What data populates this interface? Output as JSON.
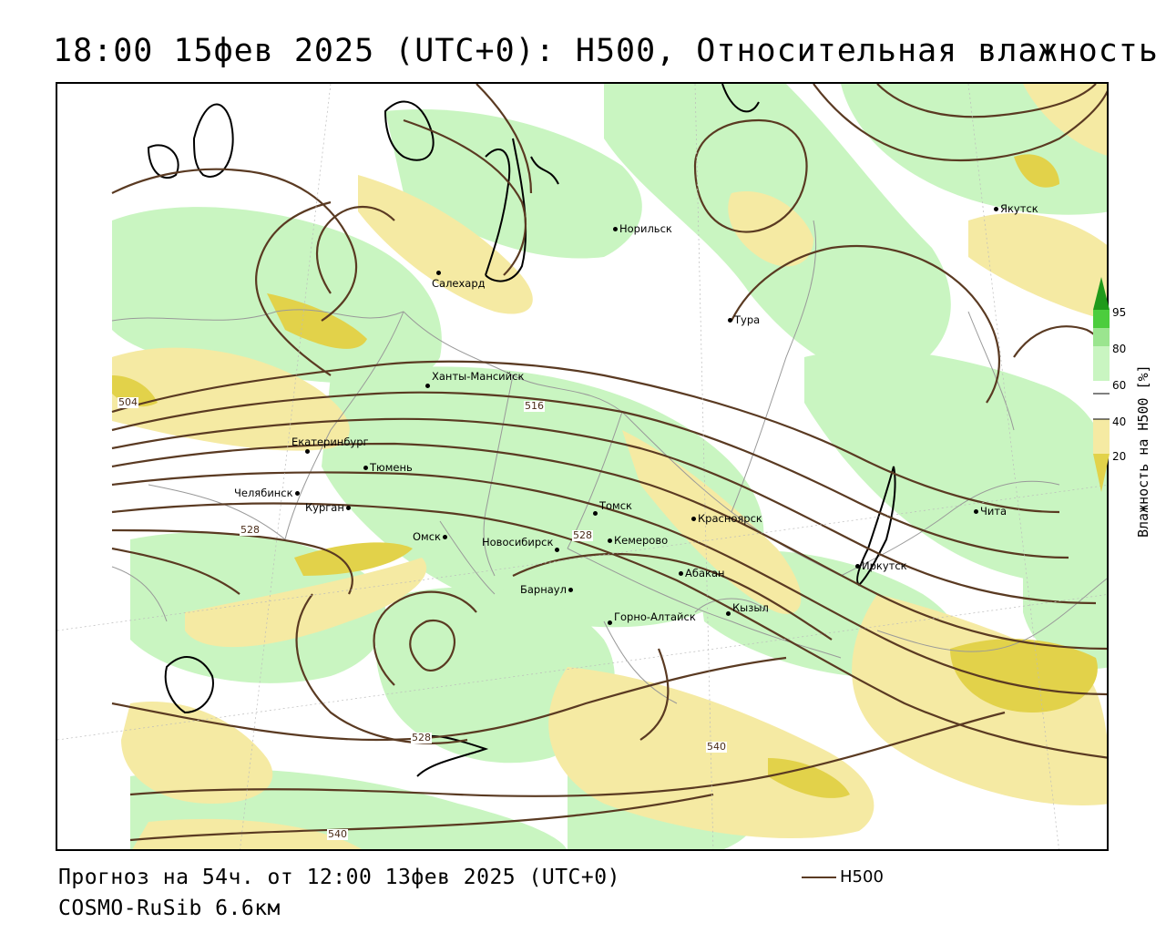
{
  "header": {
    "title": "18:00 15фев 2025 (UTC+0): H500, Относительная влажность"
  },
  "footer": {
    "forecast": "Прогноз на 54ч. от 12:00 13фев 2025 (UTC+0)",
    "model": "COSMO-RuSib 6.6км",
    "legend_line": "H500"
  },
  "colorbar": {
    "axis_label": "Влажность на H500 [%]",
    "ticks": [
      "95",
      "80",
      "60",
      "40",
      "20"
    ],
    "colors": [
      "#c8a800",
      "#e2d24a",
      "#f5eaa3",
      "#ffffff",
      "#ffffff",
      "#c9f5c1",
      "#9be58f",
      "#4ccd3d",
      "#1f9a1a"
    ]
  },
  "colors": {
    "contour": "#5a3a22",
    "green_light": "#c9f5c1",
    "yellow_light": "#f5eaa3",
    "yellow_mid": "#e2d24a",
    "borders": "#999999",
    "coast": "#000000"
  },
  "isolines": [
    "504",
    "516",
    "528",
    "528",
    "528",
    "540",
    "540"
  ],
  "cities": [
    {
      "name": "Норильск"
    },
    {
      "name": "Якутск"
    },
    {
      "name": "Салехард"
    },
    {
      "name": "Тура"
    },
    {
      "name": "Ханты-Мансийск"
    },
    {
      "name": "Екатеринбург"
    },
    {
      "name": "Тюмень"
    },
    {
      "name": "Челябинск"
    },
    {
      "name": "Курган"
    },
    {
      "name": "Омск"
    },
    {
      "name": "Новосибирск"
    },
    {
      "name": "Томск"
    },
    {
      "name": "Кемерово"
    },
    {
      "name": "Красноярск"
    },
    {
      "name": "Барнаул"
    },
    {
      "name": "Абакан"
    },
    {
      "name": "Горно-Алтайск"
    },
    {
      "name": "Кызыл"
    },
    {
      "name": "Иркутск"
    },
    {
      "name": "Чита"
    }
  ]
}
